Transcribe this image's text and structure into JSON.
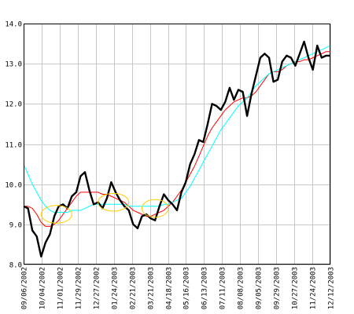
{
  "chart_data": {
    "type": "line",
    "title": "",
    "xlabel": "",
    "ylabel": "",
    "ylim": [
      8.0,
      14.0
    ],
    "y_ticks": [
      8.0,
      9.0,
      10.0,
      11.0,
      12.0,
      13.0,
      14.0
    ],
    "y_tick_labels": [
      "8.0",
      "9.0",
      "10.0",
      "11.0",
      "12.0",
      "13.0",
      "14.0"
    ],
    "x_tick_labels": [
      "09/06/2002",
      "10/04/2002",
      "11/01/2002",
      "11/29/2002",
      "12/27/2002",
      "01/24/2003",
      "02/21/2003",
      "03/21/2003",
      "04/18/2003",
      "05/16/2003",
      "06/13/2003",
      "07/11/2003",
      "08/08/2003",
      "09/05/2003",
      "09/29/2003",
      "10/27/2003",
      "11/24/2003",
      "12/12/2003"
    ],
    "grid": true,
    "series": [
      {
        "color": "#000000",
        "style": "bold",
        "values": [
          9.45,
          9.4,
          8.85,
          8.7,
          8.2,
          8.55,
          8.75,
          9.2,
          9.45,
          9.5,
          9.4,
          9.7,
          9.8,
          10.2,
          10.3,
          9.85,
          9.5,
          9.55,
          9.4,
          9.65,
          10.05,
          9.8,
          9.6,
          9.45,
          9.35,
          9.0,
          8.9,
          9.2,
          9.25,
          9.15,
          9.1,
          9.45,
          9.75,
          9.6,
          9.5,
          9.35,
          9.8,
          10.05,
          10.5,
          10.75,
          11.1,
          11.05,
          11.5,
          12.0,
          11.95,
          11.85,
          12.05,
          12.4,
          12.1,
          12.35,
          12.3,
          11.7,
          12.25,
          12.7,
          13.15,
          13.25,
          13.15,
          12.55,
          12.6,
          13.05,
          13.2,
          13.15,
          12.95,
          13.25,
          13.55,
          13.15,
          12.85,
          13.45,
          13.15,
          13.2,
          13.2
        ]
      },
      {
        "color": "#ff0000",
        "style": "thin",
        "values": [
          9.45,
          9.45,
          9.4,
          9.25,
          9.05,
          8.95,
          8.95,
          9.0,
          9.1,
          9.25,
          9.4,
          9.55,
          9.7,
          9.8,
          9.8,
          9.8,
          9.8,
          9.8,
          9.75,
          9.75,
          9.7,
          9.65,
          9.6,
          9.55,
          9.45,
          9.35,
          9.3,
          9.25,
          9.2,
          9.2,
          9.25,
          9.3,
          9.35,
          9.45,
          9.55,
          9.7,
          9.85,
          10.05,
          10.25,
          10.45,
          10.7,
          10.95,
          11.2,
          11.4,
          11.55,
          11.7,
          11.85,
          11.95,
          12.05,
          12.1,
          12.15,
          12.15,
          12.2,
          12.3,
          12.45,
          12.6,
          12.75,
          12.8,
          12.8,
          12.85,
          12.95,
          13.0,
          13.05,
          13.05,
          13.1,
          13.1,
          13.15,
          13.2,
          13.25,
          13.3,
          13.3
        ]
      },
      {
        "color": "#00ffff",
        "style": "thin",
        "values": [
          10.5,
          10.25,
          10.0,
          9.8,
          9.6,
          9.45,
          9.35,
          9.3,
          9.3,
          9.3,
          9.3,
          9.35,
          9.35,
          9.35,
          9.4,
          9.45,
          9.5,
          9.5,
          9.5,
          9.5,
          9.5,
          9.5,
          9.5,
          9.5,
          9.45,
          9.45,
          9.45,
          9.45,
          9.45,
          9.45,
          9.45,
          9.45,
          9.5,
          9.5,
          9.55,
          9.6,
          9.65,
          9.8,
          9.95,
          10.15,
          10.35,
          10.55,
          10.75,
          10.95,
          11.15,
          11.35,
          11.5,
          11.65,
          11.8,
          11.95,
          12.05,
          12.15,
          12.3,
          12.45,
          12.55,
          12.65,
          12.75,
          12.8,
          12.85,
          12.9,
          12.95,
          13.0,
          13.05,
          13.1,
          13.15,
          13.2,
          13.25,
          13.3,
          13.35,
          13.4,
          13.45
        ]
      }
    ],
    "annotations": [
      {
        "type": "ellipse",
        "color": "#ffcc00",
        "x_index": 7.5,
        "y": 9.25,
        "rx_index": 3.5,
        "ry": 0.22
      },
      {
        "type": "ellipse",
        "color": "#ffcc00",
        "x_index": 20.5,
        "y": 9.55,
        "rx_index": 3.5,
        "ry": 0.22
      },
      {
        "type": "ellipse",
        "color": "#ffcc00",
        "x_index": 30.0,
        "y": 9.4,
        "rx_index": 3.0,
        "ry": 0.22
      }
    ]
  }
}
